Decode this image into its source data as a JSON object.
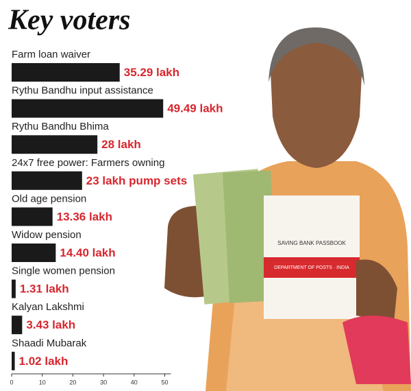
{
  "chart_data": {
    "type": "barh",
    "title": "Key voters",
    "categories": [
      "Farm loan waiver",
      "Rythu Bandhu input assistance",
      "Rythu Bandhu Bhima",
      "24x7 free power: Farmers owning",
      "Old age pension",
      "Widow pension",
      "Single women pension",
      "Kalyan Lakshmi",
      "Shaadi Mubarak"
    ],
    "values": [
      35.29,
      49.49,
      28,
      23,
      13.36,
      14.4,
      1.31,
      3.43,
      1.02
    ],
    "value_labels": [
      "35.29 lakh",
      "49.49 lakh",
      "28 lakh",
      "23 lakh pump sets",
      "13.36 lakh",
      "14.40 lakh",
      "1.31 lakh",
      "3.43 lakh",
      "1.02 lakh"
    ],
    "color": "#1a1a1a",
    "label_color": "#d7262e",
    "xlim": [
      0,
      52
    ],
    "xticks": [
      0,
      10,
      20,
      30,
      40,
      50
    ]
  },
  "photo": {
    "texts": [
      "SAVING BANK PASSBOOK",
      "DEPARTMENT OF POSTS · INDIA"
    ]
  }
}
